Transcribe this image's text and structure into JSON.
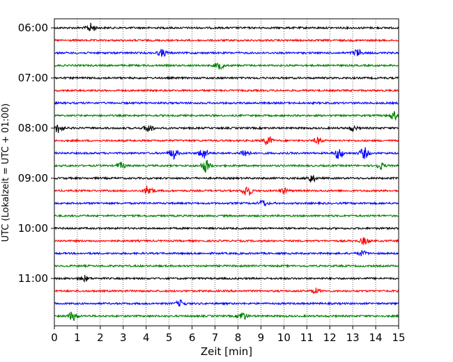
{
  "chart_data": {
    "type": "line",
    "title": "",
    "xlabel": "Zeit  [min]",
    "ylabel": "UTC (Lokalzeit = UTC + 01:00)",
    "xlim": [
      0,
      15
    ],
    "x_ticks": [
      0,
      1,
      2,
      3,
      4,
      5,
      6,
      7,
      8,
      9,
      10,
      11,
      12,
      13,
      14,
      15
    ],
    "y_tick_labels": [
      "06:00",
      "07:00",
      "08:00",
      "09:00",
      "10:00",
      "11:00"
    ],
    "grid": "vertical dotted at each minute",
    "trace_colors": [
      "#000000",
      "#ff0000",
      "#0000ff",
      "#008000"
    ],
    "trace_count": 24,
    "trace_interval_min": 15,
    "start_utc": "06:00",
    "series": [
      {
        "start": "06:00",
        "color": "#000000",
        "events": [
          {
            "t": 1.6,
            "amp": 0.45
          }
        ]
      },
      {
        "start": "06:15",
        "color": "#ff0000",
        "events": []
      },
      {
        "start": "06:30",
        "color": "#0000ff",
        "events": [
          {
            "t": 4.7,
            "amp": 0.35
          },
          {
            "t": 13.2,
            "amp": 0.35
          }
        ]
      },
      {
        "start": "06:45",
        "color": "#008000",
        "events": [
          {
            "t": 7.2,
            "amp": 0.35
          }
        ]
      },
      {
        "start": "07:00",
        "color": "#000000",
        "events": []
      },
      {
        "start": "07:15",
        "color": "#ff0000",
        "events": []
      },
      {
        "start": "07:30",
        "color": "#0000ff",
        "events": []
      },
      {
        "start": "07:45",
        "color": "#008000",
        "events": [
          {
            "t": 14.8,
            "amp": 0.4
          }
        ]
      },
      {
        "start": "08:00",
        "color": "#000000",
        "events": [
          {
            "t": 0.2,
            "amp": 0.5
          },
          {
            "t": 4.1,
            "amp": 0.4
          },
          {
            "t": 13.0,
            "amp": 0.25
          }
        ]
      },
      {
        "start": "08:15",
        "color": "#ff0000",
        "events": [
          {
            "t": 9.3,
            "amp": 0.45
          },
          {
            "t": 11.5,
            "amp": 0.3
          }
        ]
      },
      {
        "start": "08:30",
        "color": "#0000ff",
        "events": [
          {
            "t": 5.2,
            "amp": 0.55
          },
          {
            "t": 6.5,
            "amp": 0.55
          },
          {
            "t": 8.3,
            "amp": 0.4
          },
          {
            "t": 12.4,
            "amp": 0.55
          },
          {
            "t": 13.5,
            "amp": 0.55
          }
        ]
      },
      {
        "start": "08:45",
        "color": "#008000",
        "events": [
          {
            "t": 6.6,
            "amp": 0.65
          },
          {
            "t": 2.9,
            "amp": 0.3
          },
          {
            "t": 14.2,
            "amp": 0.3
          }
        ]
      },
      {
        "start": "09:00",
        "color": "#000000",
        "events": [
          {
            "t": 11.2,
            "amp": 0.4
          }
        ]
      },
      {
        "start": "09:15",
        "color": "#ff0000",
        "events": [
          {
            "t": 4.1,
            "amp": 0.55
          },
          {
            "t": 8.4,
            "amp": 0.6
          },
          {
            "t": 10.0,
            "amp": 0.25
          }
        ]
      },
      {
        "start": "09:30",
        "color": "#0000ff",
        "events": [
          {
            "t": 9.1,
            "amp": 0.3
          }
        ]
      },
      {
        "start": "09:45",
        "color": "#008000",
        "events": []
      },
      {
        "start": "10:00",
        "color": "#000000",
        "events": []
      },
      {
        "start": "10:15",
        "color": "#ff0000",
        "events": [
          {
            "t": 13.5,
            "amp": 0.35
          }
        ]
      },
      {
        "start": "10:30",
        "color": "#0000ff",
        "events": [
          {
            "t": 13.4,
            "amp": 0.25
          }
        ]
      },
      {
        "start": "10:45",
        "color": "#008000",
        "events": []
      },
      {
        "start": "11:00",
        "color": "#000000",
        "events": [
          {
            "t": 1.3,
            "amp": 0.3
          }
        ]
      },
      {
        "start": "11:15",
        "color": "#ff0000",
        "events": [
          {
            "t": 11.4,
            "amp": 0.25
          }
        ]
      },
      {
        "start": "11:30",
        "color": "#0000ff",
        "events": [
          {
            "t": 5.5,
            "amp": 0.3
          }
        ]
      },
      {
        "start": "11:45",
        "color": "#008000",
        "events": [
          {
            "t": 0.8,
            "amp": 0.45
          },
          {
            "t": 8.2,
            "amp": 0.4
          }
        ]
      }
    ]
  }
}
